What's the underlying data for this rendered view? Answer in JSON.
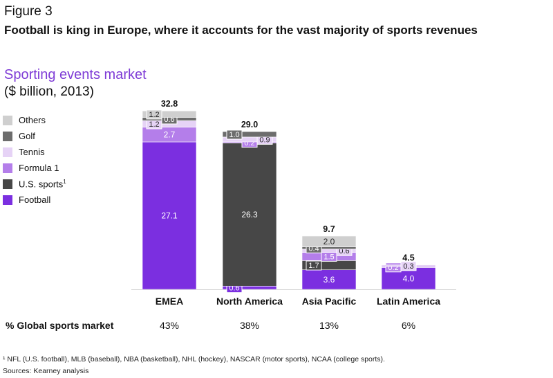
{
  "figure_label": "Figure 3",
  "headline": "Football is king in Europe, where it accounts for the vast majority of sports revenues",
  "chart_data": {
    "type": "bar",
    "stacked": true,
    "title": "Sporting events market",
    "subtitle": "($ billion, 2013)",
    "categories": [
      "EMEA",
      "North America",
      "Asia Pacific",
      "Latin America"
    ],
    "totals": [
      "32.8",
      "29.0",
      "9.7",
      "4.5"
    ],
    "series": [
      {
        "name": "Football",
        "color": "#7b2fe0",
        "values": [
          27.1,
          0.6,
          3.6,
          4.0
        ],
        "labels": [
          "27.1",
          "0.6",
          "3.6",
          "4.0"
        ]
      },
      {
        "name": "U.S. sports",
        "color": "#474747",
        "values": [
          0,
          26.3,
          1.7,
          0
        ],
        "labels": [
          "",
          "26.3",
          "1.7",
          ""
        ]
      },
      {
        "name": "Formula 1",
        "color": "#b47eea",
        "values": [
          2.7,
          0.2,
          1.5,
          0.2
        ],
        "labels": [
          "2.7",
          "0.2",
          "1.5",
          "0.2"
        ]
      },
      {
        "name": "Tennis",
        "color": "#e6d3f6",
        "values": [
          1.2,
          0.9,
          0.6,
          0.3
        ],
        "labels": [
          "1.2",
          "0.9",
          "0.6",
          "0.3"
        ]
      },
      {
        "name": "Golf",
        "color": "#6d6d6d",
        "values": [
          0.6,
          1.0,
          0.4,
          0
        ],
        "labels": [
          "0.6",
          "1.0",
          "0.4",
          ""
        ]
      },
      {
        "name": "Others",
        "color": "#cfcfcf",
        "values": [
          1.2,
          0,
          2.0,
          0
        ],
        "labels": [
          "1.2",
          "",
          "2.0",
          ""
        ]
      }
    ],
    "legend_order": [
      "Others",
      "Golf",
      "Tennis",
      "Formula 1",
      "U.S. sports",
      "Football"
    ],
    "legend_placement": "left",
    "ylim": [
      0,
      35
    ],
    "grid": false
  },
  "legend": [
    {
      "label": "Others",
      "color": "#cfcfcf"
    },
    {
      "label": "Golf",
      "color": "#6d6d6d"
    },
    {
      "label": "Tennis",
      "color": "#e6d3f6"
    },
    {
      "label": "Formula 1",
      "color": "#b47eea"
    },
    {
      "label": "U.S. sports",
      "sup": "1",
      "color": "#474747"
    },
    {
      "label": "Football",
      "color": "#7b2fe0"
    }
  ],
  "global_share": {
    "label": "% Global sports market",
    "values": [
      "43%",
      "38%",
      "13%",
      "6%"
    ]
  },
  "footnote": "¹ NFL (U.S. football), MLB (baseball), NBA (basketball), NHL (hockey), NASCAR (motor sports), NCAA (college sports).",
  "source": "Sources: Kearney analysis"
}
